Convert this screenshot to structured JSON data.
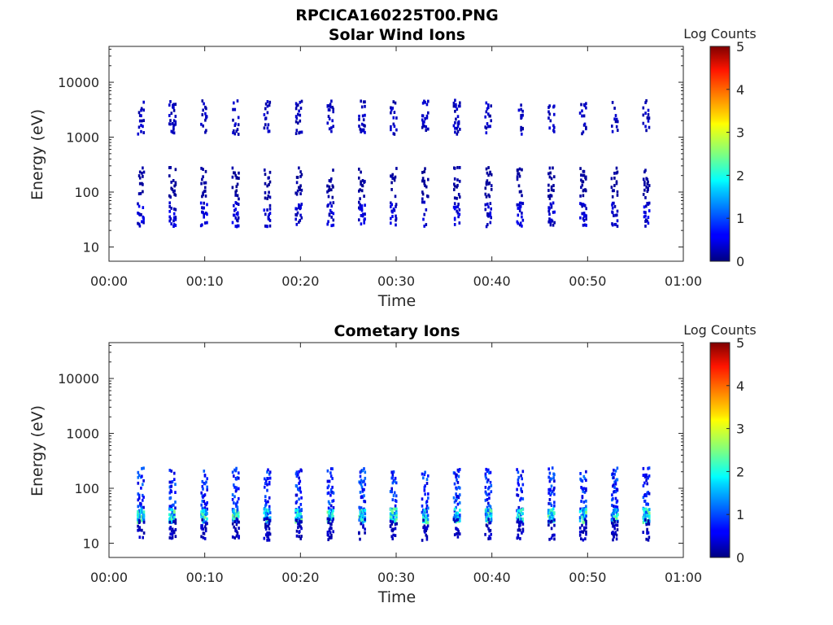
{
  "figure": {
    "filename": "RPCICA160225T00.PNG"
  },
  "chart_data": [
    {
      "type": "heatmap",
      "title": "Solar Wind Ions",
      "xlabel": "Time",
      "ylabel": "Energy (eV)",
      "x_ticks": [
        "00:00",
        "00:10",
        "00:20",
        "00:30",
        "00:40",
        "00:50",
        "01:00"
      ],
      "x_range_minutes": [
        0,
        60
      ],
      "y_scale": "log",
      "y_range_eV": [
        5.5,
        45000
      ],
      "y_ticks": [
        {
          "value": 10,
          "label": "10"
        },
        {
          "value": 100,
          "label": "100"
        },
        {
          "value": 1000,
          "label": "1000"
        },
        {
          "value": 10000,
          "label": "10000"
        }
      ],
      "colorbar": {
        "label": "Log Counts",
        "range": [
          0,
          5
        ],
        "ticks": [
          "0",
          "1",
          "2",
          "3",
          "4",
          "5"
        ],
        "colormap": "jet"
      },
      "sweep_period_minutes": 3.3,
      "sweep_count": 17,
      "features": [
        {
          "energy_eV": [
            1200,
            5000
          ],
          "level": 0.3,
          "description": "high-energy band near 2000 eV"
        },
        {
          "energy_eV": [
            25,
            70
          ],
          "level": 0.4,
          "description": "low-energy blobs"
        },
        {
          "energy_eV": [
            80,
            300
          ],
          "level": 0.15,
          "description": "scattered counts"
        }
      ]
    },
    {
      "type": "heatmap",
      "title": "Cometary Ions",
      "xlabel": "Time",
      "ylabel": "Energy (eV)",
      "x_ticks": [
        "00:00",
        "00:10",
        "00:20",
        "00:30",
        "00:40",
        "00:50",
        "01:00"
      ],
      "x_range_minutes": [
        0,
        60
      ],
      "y_scale": "log",
      "y_range_eV": [
        5.5,
        45000
      ],
      "y_ticks": [
        {
          "value": 10,
          "label": "10"
        },
        {
          "value": 100,
          "label": "100"
        },
        {
          "value": 1000,
          "label": "1000"
        },
        {
          "value": 10000,
          "label": "10000"
        }
      ],
      "colorbar": {
        "label": "Log Counts",
        "range": [
          0,
          5
        ],
        "ticks": [
          "0",
          "1",
          "2",
          "3",
          "4",
          "5"
        ],
        "colormap": "jet"
      },
      "sweep_period_minutes": 3.3,
      "sweep_count": 17,
      "features": [
        {
          "energy_eV": [
            40,
            250
          ],
          "level": 0.8,
          "description": "dense cometary ion clusters"
        },
        {
          "energy_eV": [
            25,
            45
          ],
          "level": 1.7,
          "description": "cyan peak near 35 eV"
        },
        {
          "energy_eV": [
            12,
            30
          ],
          "level": 0.3,
          "description": "lower tail"
        }
      ]
    }
  ]
}
